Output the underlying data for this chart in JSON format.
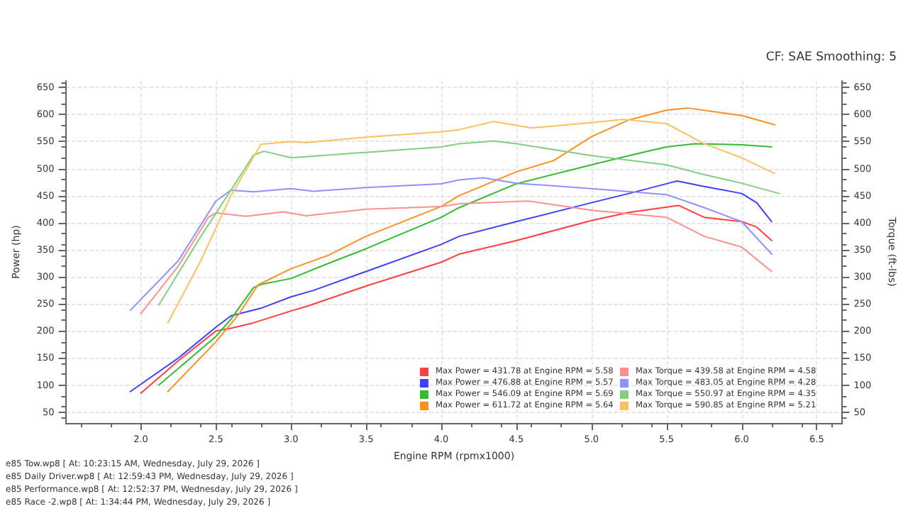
{
  "chart_data": {
    "type": "line",
    "subtitle": "CF: SAE Smoothing: 5",
    "xlabel": "Engine RPM (rpmx1000)",
    "ylabel": "Power (hp)",
    "y2label": "Torque (ft-lbs)",
    "xlim": [
      1.5,
      6.67
    ],
    "xticks": [
      {
        "value": 2,
        "label": "2.0"
      },
      {
        "value": 2.5,
        "label": "2.5"
      },
      {
        "value": 3,
        "label": "3.0"
      },
      {
        "value": 3.5,
        "label": "3.5"
      },
      {
        "value": 4,
        "label": "4.0"
      },
      {
        "value": 4.5,
        "label": "4.5"
      },
      {
        "value": 5,
        "label": "5.0"
      },
      {
        "value": 5.5,
        "label": "5.5"
      },
      {
        "value": 6,
        "label": "6.0"
      },
      {
        "value": 6.5,
        "label": "6.5"
      }
    ],
    "ylim": [
      30,
      662
    ],
    "yticks": [
      50,
      100,
      150,
      200,
      250,
      300,
      350,
      400,
      450,
      500,
      550,
      600,
      650
    ],
    "y2lim": [
      30,
      662
    ],
    "y2ticks": [
      50,
      100,
      150,
      200,
      250,
      300,
      350,
      400,
      450,
      500,
      550,
      600,
      650
    ],
    "grid": true,
    "legend": "bottom right",
    "marker": "none",
    "line_style": "solid",
    "series": [
      {
        "name": "Max Power = 431.78 at Engine RPM = 5.58",
        "color": "#ff4040",
        "x": [
          2.0,
          2.25,
          2.5,
          2.6,
          2.75,
          3.0,
          3.1,
          3.5,
          4.0,
          4.12,
          4.5,
          5.0,
          5.25,
          5.58,
          5.75,
          6.0,
          6.1,
          6.2
        ],
        "values": [
          85,
          145,
          200,
          205,
          215,
          237,
          245,
          283,
          327,
          342,
          367,
          404,
          419,
          432,
          410,
          402,
          392,
          367
        ]
      },
      {
        "name": "Max Power = 476.88 at Engine RPM = 5.57",
        "color": "#4040ff",
        "x": [
          1.93,
          2.25,
          2.5,
          2.6,
          2.8,
          3.0,
          3.15,
          3.5,
          4.0,
          4.12,
          4.5,
          5.0,
          5.25,
          5.5,
          5.57,
          5.75,
          6.0,
          6.1,
          6.2
        ],
        "values": [
          88,
          150,
          207,
          228,
          242,
          263,
          275,
          310,
          360,
          375,
          402,
          437,
          454,
          472,
          477,
          467,
          454,
          437,
          402
        ]
      },
      {
        "name": "Max Power = 546.09 at Engine RPM = 5.69",
        "color": "#33bb33",
        "x": [
          2.12,
          2.5,
          2.6,
          2.75,
          2.8,
          3.0,
          3.25,
          3.5,
          4.0,
          4.12,
          4.5,
          5.0,
          5.25,
          5.5,
          5.69,
          6.0,
          6.2
        ],
        "values": [
          100,
          190,
          222,
          280,
          286,
          297,
          325,
          352,
          410,
          428,
          472,
          507,
          524,
          540,
          546,
          544,
          540
        ]
      },
      {
        "name": "Max Power = 611.72 at Engine RPM = 5.64",
        "color": "#ff9020",
        "x": [
          2.18,
          2.5,
          2.65,
          2.78,
          3.0,
          3.25,
          3.5,
          4.0,
          4.12,
          4.5,
          4.75,
          5.0,
          5.25,
          5.5,
          5.64,
          6.0,
          6.22
        ],
        "values": [
          88,
          180,
          230,
          285,
          315,
          340,
          375,
          430,
          450,
          494,
          515,
          559,
          590,
          608,
          612,
          598,
          581
        ]
      },
      {
        "name": "Max Torque = 439.58 at Engine RPM = 4.58",
        "color": "#ff9090",
        "axis": "y2",
        "x": [
          2.0,
          2.25,
          2.45,
          2.5,
          2.7,
          2.95,
          3.1,
          3.5,
          4.0,
          4.12,
          4.58,
          5.0,
          5.5,
          5.75,
          6.0,
          6.2
        ],
        "values": [
          232,
          320,
          410,
          418,
          412,
          420,
          413,
          425,
          430,
          435,
          440,
          423,
          410,
          375,
          355,
          310
        ]
      },
      {
        "name": "Max Torque = 483.05 at Engine RPM = 4.28",
        "color": "#9090ff",
        "axis": "y2",
        "x": [
          1.93,
          2.25,
          2.5,
          2.6,
          2.75,
          3.0,
          3.15,
          3.5,
          4.0,
          4.12,
          4.28,
          4.5,
          5.0,
          5.5,
          5.75,
          6.0,
          6.2
        ],
        "values": [
          238,
          330,
          440,
          460,
          457,
          463,
          458,
          465,
          472,
          479,
          483,
          473,
          463,
          452,
          428,
          402,
          342
        ]
      },
      {
        "name": "Max Torque = 550.97 at Engine RPM = 4.35",
        "color": "#80d080",
        "axis": "y2",
        "x": [
          2.12,
          2.4,
          2.6,
          2.75,
          2.82,
          3.0,
          3.1,
          3.5,
          4.0,
          4.12,
          4.35,
          4.5,
          5.0,
          5.5,
          5.75,
          6.0,
          6.25
        ],
        "values": [
          248,
          375,
          460,
          525,
          532,
          520,
          522,
          530,
          540,
          546,
          551,
          546,
          524,
          507,
          489,
          473,
          454
        ]
      },
      {
        "name": "Max Torque = 590.85 at Engine RPM = 5.21",
        "color": "#ffc060",
        "axis": "y2",
        "x": [
          2.18,
          2.4,
          2.6,
          2.8,
          3.0,
          3.1,
          3.5,
          4.0,
          4.12,
          4.35,
          4.6,
          5.0,
          5.21,
          5.5,
          5.75,
          6.0,
          6.22
        ],
        "values": [
          215,
          330,
          450,
          545,
          550,
          548,
          558,
          568,
          572,
          587,
          575,
          585,
          591,
          583,
          546,
          520,
          491
        ]
      }
    ],
    "annotations": [
      "e85 Tow.wp8 [ At: 10:23:15 AM, Wednesday, July 29, 2026 ]",
      "e85 Daily Driver.wp8 [ At: 12:59:43 PM, Wednesday, July 29, 2026 ]",
      "e85 Performance.wp8 [ At: 12:52:37 PM, Wednesday, July 29, 2026 ]",
      "e85 Race -2.wp8 [ At: 1:34:44 PM, Wednesday, July 29, 2026 ]"
    ]
  }
}
